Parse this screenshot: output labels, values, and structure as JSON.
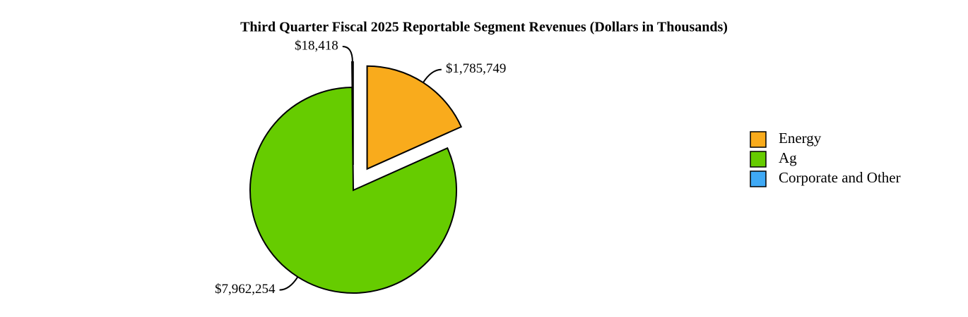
{
  "chart_data": {
    "type": "pie",
    "title": "Third Quarter Fiscal 2025 Reportable Segment Revenues (Dollars in Thousands)",
    "categories": [
      "Energy",
      "Ag",
      "Corporate and Other"
    ],
    "values": [
      1785749,
      7962254,
      18418
    ],
    "value_labels": [
      "$1,785,749",
      "$7,962,254",
      "$18,418"
    ],
    "colors": [
      "#f9ab1c",
      "#66cc00",
      "#3fa9f5"
    ],
    "legend": "right"
  }
}
